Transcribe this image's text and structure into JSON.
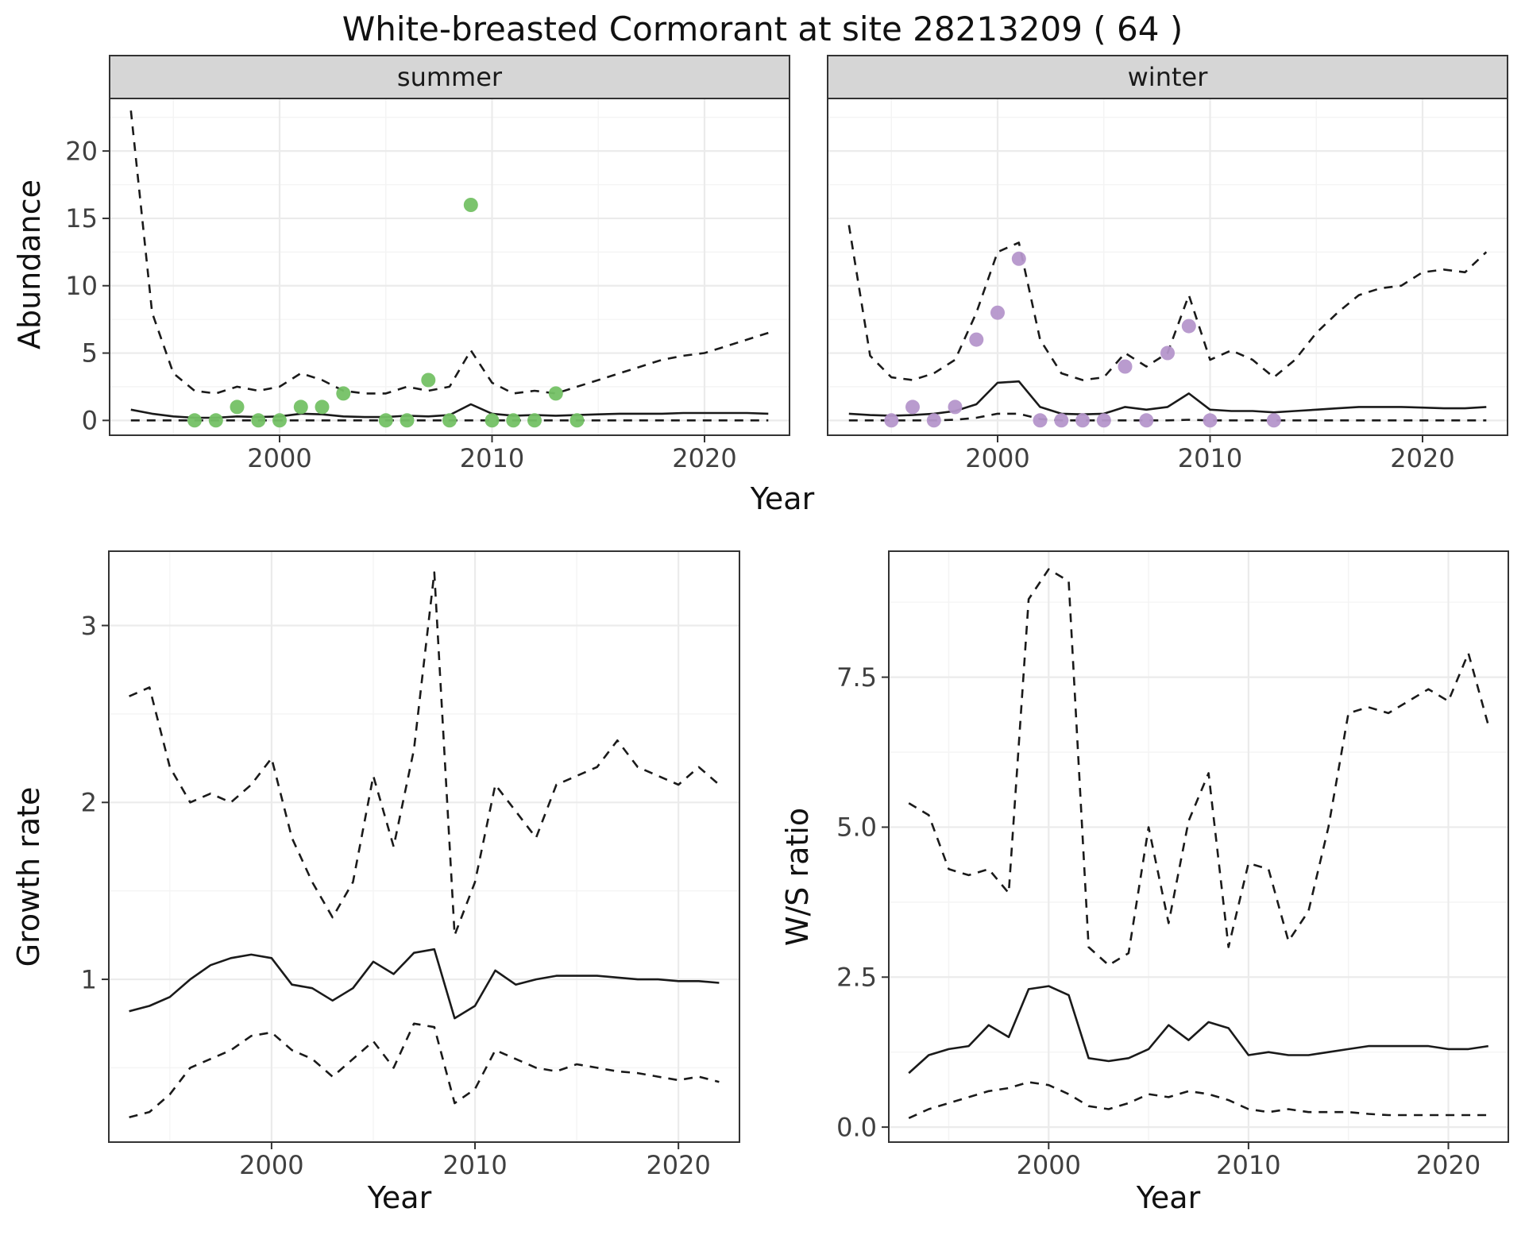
{
  "title": "White-breasted Cormorant at site 28213209 ( 64 )",
  "colors": {
    "summer_points": "#74c165",
    "winter_points": "#b596cb",
    "line": "#1a1a1a",
    "strip_bg": "#d6d6d6",
    "panel_border": "#333333",
    "grid_major": "#ebebeb",
    "grid_minor": "#f4f4f4",
    "tick_text": "#404040"
  },
  "chart_data": [
    {
      "id": "abundance-summer",
      "type": "line",
      "facet_label": "summer",
      "xlabel": "Year",
      "ylabel": "Abundance",
      "xlim": [
        1992,
        2024
      ],
      "ylim": [
        -1.1,
        23.9
      ],
      "xticks": [
        2000,
        2010,
        2020
      ],
      "yticks": [
        0,
        5,
        10,
        15,
        20
      ],
      "ytick_labels": [
        "0",
        "5",
        "10",
        "15",
        "20"
      ],
      "legend": "none",
      "grid": true,
      "series": [
        {
          "name": "upper-ci",
          "style": "dashed",
          "x": [
            1993,
            1994,
            1995,
            1996,
            1997,
            1998,
            1999,
            2000,
            2001,
            2002,
            2003,
            2004,
            2005,
            2006,
            2007,
            2008,
            2009,
            2010,
            2011,
            2012,
            2013,
            2014,
            2015,
            2016,
            2017,
            2018,
            2019,
            2020,
            2021,
            2022,
            2023
          ],
          "y": [
            23,
            8,
            3.5,
            2.2,
            2,
            2.5,
            2.2,
            2.5,
            3.5,
            3,
            2.2,
            2,
            2,
            2.5,
            2.2,
            2.5,
            5.2,
            2.8,
            2,
            2.2,
            2,
            2.5,
            3,
            3.5,
            4,
            4.5,
            4.8,
            5,
            5.5,
            6,
            6.5
          ]
        },
        {
          "name": "median",
          "style": "solid",
          "x": [
            1993,
            1994,
            1995,
            1996,
            1997,
            1998,
            1999,
            2000,
            2001,
            2002,
            2003,
            2004,
            2005,
            2006,
            2007,
            2008,
            2009,
            2010,
            2011,
            2012,
            2013,
            2014,
            2015,
            2016,
            2017,
            2018,
            2019,
            2020,
            2021,
            2022,
            2023
          ],
          "y": [
            0.8,
            0.5,
            0.3,
            0.2,
            0.2,
            0.3,
            0.25,
            0.3,
            0.5,
            0.45,
            0.3,
            0.25,
            0.25,
            0.35,
            0.3,
            0.4,
            1.2,
            0.5,
            0.35,
            0.4,
            0.35,
            0.4,
            0.45,
            0.5,
            0.5,
            0.5,
            0.55,
            0.55,
            0.55,
            0.55,
            0.5
          ]
        },
        {
          "name": "lower-ci",
          "style": "dashed",
          "x": [
            1993,
            1994,
            1995,
            1996,
            1997,
            1998,
            1999,
            2000,
            2001,
            2002,
            2003,
            2004,
            2005,
            2006,
            2007,
            2008,
            2009,
            2010,
            2011,
            2012,
            2013,
            2014,
            2015,
            2016,
            2017,
            2018,
            2019,
            2020,
            2021,
            2022,
            2023
          ],
          "y": [
            0,
            0,
            0,
            0,
            0,
            0,
            0,
            0,
            0,
            0,
            0,
            0,
            0,
            0,
            0,
            0,
            0,
            0,
            0,
            0,
            0,
            0,
            0,
            0,
            0,
            0,
            0,
            0,
            0,
            0,
            0
          ]
        },
        {
          "name": "summer-observations",
          "style": "points",
          "color_key": "summer_points",
          "x": [
            1996,
            1997,
            1998,
            1999,
            2000,
            2001,
            2002,
            2003,
            2005,
            2006,
            2007,
            2008,
            2009,
            2010,
            2011,
            2012,
            2013,
            2014
          ],
          "y": [
            0,
            0,
            1,
            0,
            0,
            1,
            1,
            2,
            0,
            0,
            3,
            0,
            16,
            0,
            0,
            0,
            2,
            0
          ]
        }
      ]
    },
    {
      "id": "abundance-winter",
      "type": "line",
      "facet_label": "winter",
      "xlabel": "Year",
      "ylabel": "Abundance",
      "xlim": [
        1992,
        2024
      ],
      "ylim": [
        -1.1,
        23.9
      ],
      "xticks": [
        2000,
        2010,
        2020
      ],
      "yticks": [
        0,
        5,
        10,
        15,
        20
      ],
      "ytick_labels": [
        "0",
        "5",
        "10",
        "15",
        "20"
      ],
      "legend": "none",
      "grid": true,
      "series": [
        {
          "name": "upper-ci",
          "style": "dashed",
          "x": [
            1993,
            1994,
            1995,
            1996,
            1997,
            1998,
            1999,
            2000,
            2001,
            2002,
            2003,
            2004,
            2005,
            2006,
            2007,
            2008,
            2009,
            2010,
            2011,
            2012,
            2013,
            2014,
            2015,
            2016,
            2017,
            2018,
            2019,
            2020,
            2021,
            2022,
            2023
          ],
          "y": [
            14.5,
            4.8,
            3.2,
            3,
            3.5,
            4.5,
            8,
            12.5,
            13.2,
            6,
            3.5,
            3,
            3.2,
            5,
            4,
            5,
            9.3,
            4.5,
            5.2,
            4.5,
            3.2,
            4.5,
            6.5,
            8,
            9.3,
            9.8,
            10,
            11,
            11.2,
            11,
            12.5
          ]
        },
        {
          "name": "median",
          "style": "solid",
          "x": [
            1993,
            1994,
            1995,
            1996,
            1997,
            1998,
            1999,
            2000,
            2001,
            2002,
            2003,
            2004,
            2005,
            2006,
            2007,
            2008,
            2009,
            2010,
            2011,
            2012,
            2013,
            2014,
            2015,
            2016,
            2017,
            2018,
            2019,
            2020,
            2021,
            2022,
            2023
          ],
          "y": [
            0.5,
            0.4,
            0.35,
            0.4,
            0.5,
            0.7,
            1.2,
            2.8,
            2.9,
            1,
            0.5,
            0.45,
            0.5,
            1,
            0.8,
            1,
            2,
            0.8,
            0.7,
            0.7,
            0.6,
            0.7,
            0.8,
            0.9,
            1,
            1,
            1,
            0.95,
            0.9,
            0.9,
            1
          ]
        },
        {
          "name": "lower-ci",
          "style": "dashed",
          "x": [
            1993,
            1994,
            1995,
            1996,
            1997,
            1998,
            1999,
            2000,
            2001,
            2002,
            2003,
            2004,
            2005,
            2006,
            2007,
            2008,
            2009,
            2010,
            2011,
            2012,
            2013,
            2014,
            2015,
            2016,
            2017,
            2018,
            2019,
            2020,
            2021,
            2022,
            2023
          ],
          "y": [
            0,
            0,
            0,
            0,
            0,
            0.05,
            0.2,
            0.5,
            0.5,
            0.1,
            0,
            0,
            0,
            0,
            0,
            0,
            0.05,
            0,
            0,
            0,
            0,
            0,
            0,
            0,
            0,
            0,
            0,
            0,
            0,
            0,
            0
          ]
        },
        {
          "name": "winter-observations",
          "style": "points",
          "color_key": "winter_points",
          "x": [
            1995,
            1996,
            1997,
            1998,
            1999,
            2000,
            2001,
            2002,
            2003,
            2004,
            2005,
            2006,
            2007,
            2008,
            2009,
            2010,
            2013
          ],
          "y": [
            0,
            1,
            0,
            1,
            6,
            8,
            12,
            0,
            0,
            0,
            0,
            4,
            0,
            5,
            7,
            0,
            0
          ]
        }
      ]
    },
    {
      "id": "growth-rate",
      "type": "line",
      "facet_label": "",
      "xlabel": "Year",
      "ylabel": "Growth rate",
      "xlim": [
        1992,
        2023
      ],
      "ylim": [
        0.08,
        3.42
      ],
      "xticks": [
        2000,
        2010,
        2020
      ],
      "yticks": [
        1,
        2,
        3
      ],
      "ytick_labels": [
        "1",
        "2",
        "3"
      ],
      "legend": "none",
      "grid": true,
      "series": [
        {
          "name": "upper-ci",
          "style": "dashed",
          "x": [
            1993,
            1994,
            1995,
            1996,
            1997,
            1998,
            1999,
            2000,
            2001,
            2002,
            2003,
            2004,
            2005,
            2006,
            2007,
            2008,
            2009,
            2010,
            2011,
            2012,
            2013,
            2014,
            2015,
            2016,
            2017,
            2018,
            2019,
            2020,
            2021,
            2022
          ],
          "y": [
            2.6,
            2.65,
            2.2,
            2,
            2.05,
            2,
            2.1,
            2.25,
            1.8,
            1.55,
            1.35,
            1.55,
            2.15,
            1.75,
            2.3,
            3.3,
            1.25,
            1.55,
            2.1,
            1.95,
            1.8,
            2.1,
            2.15,
            2.2,
            2.35,
            2.2,
            2.15,
            2.1,
            2.2,
            2.1
          ]
        },
        {
          "name": "median",
          "style": "solid",
          "x": [
            1993,
            1994,
            1995,
            1996,
            1997,
            1998,
            1999,
            2000,
            2001,
            2002,
            2003,
            2004,
            2005,
            2006,
            2007,
            2008,
            2009,
            2010,
            2011,
            2012,
            2013,
            2014,
            2015,
            2016,
            2017,
            2018,
            2019,
            2020,
            2021,
            2022
          ],
          "y": [
            0.82,
            0.85,
            0.9,
            1,
            1.08,
            1.12,
            1.14,
            1.12,
            0.97,
            0.95,
            0.88,
            0.95,
            1.1,
            1.03,
            1.15,
            1.17,
            0.78,
            0.85,
            1.05,
            0.97,
            1,
            1.02,
            1.02,
            1.02,
            1.01,
            1,
            1,
            0.99,
            0.99,
            0.98
          ]
        },
        {
          "name": "lower-ci",
          "style": "dashed",
          "x": [
            1993,
            1994,
            1995,
            1996,
            1997,
            1998,
            1999,
            2000,
            2001,
            2002,
            2003,
            2004,
            2005,
            2006,
            2007,
            2008,
            2009,
            2010,
            2011,
            2012,
            2013,
            2014,
            2015,
            2016,
            2017,
            2018,
            2019,
            2020,
            2021,
            2022
          ],
          "y": [
            0.22,
            0.25,
            0.35,
            0.5,
            0.55,
            0.6,
            0.68,
            0.7,
            0.6,
            0.55,
            0.45,
            0.55,
            0.65,
            0.5,
            0.75,
            0.73,
            0.3,
            0.38,
            0.6,
            0.55,
            0.5,
            0.48,
            0.52,
            0.5,
            0.48,
            0.47,
            0.45,
            0.43,
            0.45,
            0.42
          ]
        }
      ]
    },
    {
      "id": "ws-ratio",
      "type": "line",
      "facet_label": "",
      "xlabel": "Year",
      "ylabel": "W/S ratio",
      "xlim": [
        1992,
        2023
      ],
      "ylim": [
        -0.25,
        9.6
      ],
      "xticks": [
        2000,
        2010,
        2020
      ],
      "yticks": [
        0,
        2.5,
        5,
        7.5
      ],
      "ytick_labels": [
        "0.0",
        "2.5",
        "5.0",
        "7.5"
      ],
      "legend": "none",
      "grid": true,
      "series": [
        {
          "name": "upper-ci",
          "style": "dashed",
          "x": [
            1993,
            1994,
            1995,
            1996,
            1997,
            1998,
            1999,
            2000,
            2001,
            2002,
            2003,
            2004,
            2005,
            2006,
            2007,
            2008,
            2009,
            2010,
            2011,
            2012,
            2013,
            2014,
            2015,
            2016,
            2017,
            2018,
            2019,
            2020,
            2021,
            2022
          ],
          "y": [
            5.4,
            5.2,
            4.3,
            4.2,
            4.3,
            3.9,
            8.8,
            9.3,
            9.1,
            3,
            2.7,
            2.9,
            5,
            3.4,
            5.1,
            5.9,
            3,
            4.4,
            4.3,
            3.1,
            3.6,
            5,
            6.9,
            7,
            6.9,
            7.1,
            7.3,
            7.1,
            7.9,
            6.7
          ]
        },
        {
          "name": "median",
          "style": "solid",
          "x": [
            1993,
            1994,
            1995,
            1996,
            1997,
            1998,
            1999,
            2000,
            2001,
            2002,
            2003,
            2004,
            2005,
            2006,
            2007,
            2008,
            2009,
            2010,
            2011,
            2012,
            2013,
            2014,
            2015,
            2016,
            2017,
            2018,
            2019,
            2020,
            2021,
            2022
          ],
          "y": [
            0.9,
            1.2,
            1.3,
            1.35,
            1.7,
            1.5,
            2.3,
            2.35,
            2.2,
            1.15,
            1.1,
            1.15,
            1.3,
            1.7,
            1.45,
            1.75,
            1.65,
            1.2,
            1.25,
            1.2,
            1.2,
            1.25,
            1.3,
            1.35,
            1.35,
            1.35,
            1.35,
            1.3,
            1.3,
            1.35
          ]
        },
        {
          "name": "lower-ci",
          "style": "dashed",
          "x": [
            1993,
            1994,
            1995,
            1996,
            1997,
            1998,
            1999,
            2000,
            2001,
            2002,
            2003,
            2004,
            2005,
            2006,
            2007,
            2008,
            2009,
            2010,
            2011,
            2012,
            2013,
            2014,
            2015,
            2016,
            2017,
            2018,
            2019,
            2020,
            2021,
            2022
          ],
          "y": [
            0.15,
            0.3,
            0.4,
            0.5,
            0.6,
            0.65,
            0.75,
            0.7,
            0.55,
            0.35,
            0.3,
            0.4,
            0.55,
            0.5,
            0.6,
            0.55,
            0.45,
            0.3,
            0.25,
            0.3,
            0.25,
            0.25,
            0.25,
            0.22,
            0.2,
            0.2,
            0.2,
            0.2,
            0.2,
            0.2
          ]
        }
      ]
    }
  ]
}
